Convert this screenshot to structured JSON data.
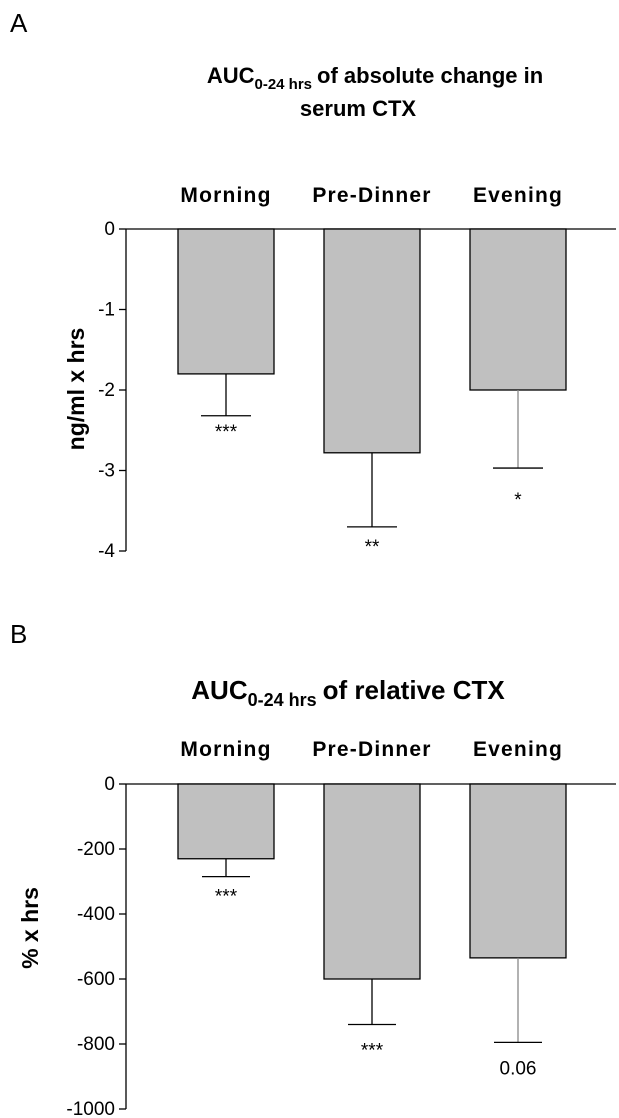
{
  "chart_data": [
    {
      "type": "bar",
      "panel": "A",
      "title": "of absolute change in serum CTX",
      "title_parts": {
        "main": "AUC",
        "subscript": "0-24 hrs",
        "line1_rest": "of absolute change in",
        "line2": "serum CTX"
      },
      "categories": [
        "Morning",
        "Pre-Dinner",
        "Evening"
      ],
      "values": [
        -1.8,
        -2.78,
        -2.0
      ],
      "errors": [
        0.52,
        0.92,
        0.97
      ],
      "significance": [
        "***",
        "**",
        "*"
      ],
      "ylabel": "ng/ml x hrs",
      "xlabel": "",
      "ylim": [
        -4,
        0
      ],
      "yticks": [
        0,
        -1,
        -2,
        -3,
        -4
      ],
      "bar_color": "#c0c0c0"
    },
    {
      "type": "bar",
      "panel": "B",
      "title": "of relative CTX",
      "title_parts": {
        "main": "AUC",
        "subscript": "0-24 hrs",
        "line1_rest": "of relative CTX"
      },
      "categories": [
        "Morning",
        "Pre-Dinner",
        "Evening"
      ],
      "values": [
        -230,
        -600,
        -535
      ],
      "errors": [
        55,
        140,
        260
      ],
      "significance": [
        "***",
        "***",
        "0.06"
      ],
      "ylabel": "% x hrs",
      "xlabel": "",
      "ylim": [
        -1000,
        0
      ],
      "yticks": [
        0,
        -200,
        -400,
        -600,
        -800,
        -1000
      ],
      "bar_color": "#c0c0c0"
    }
  ]
}
